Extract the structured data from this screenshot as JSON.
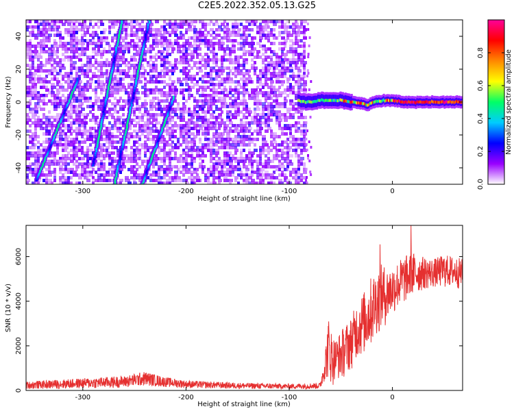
{
  "title": "C2E5.2022.352.05.13.G25",
  "chart_data": [
    {
      "type": "heatmap",
      "xlabel": "Height of straight line (km)",
      "ylabel": "Frequency (Hz)",
      "xlim": [
        -355,
        68
      ],
      "ylim": [
        -50,
        50
      ],
      "xticks": [
        -300,
        -200,
        -100,
        0
      ],
      "yticks": [
        -40,
        -20,
        0,
        20,
        40
      ],
      "grid": false,
      "colorbar": {
        "label": "Normalized spectral amplitude",
        "range": [
          0,
          1
        ],
        "ticks": [
          "0.0",
          "0.2",
          "0.4",
          "0.6",
          "0.8"
        ],
        "colormap": "rainbow",
        "colors": [
          "#ffffff",
          "#9900ff",
          "#0000ff",
          "#00ccff",
          "#00ff66",
          "#ffff00",
          "#ff8800",
          "#ff0000",
          "#ff0099"
        ]
      },
      "noise_region_x": [
        -355,
        -85
      ],
      "carrier_line": {
        "x": [
          -92,
          -85,
          -80,
          -70,
          -60,
          -50,
          -40,
          -30,
          -25,
          -20,
          -10,
          0,
          10,
          20,
          30,
          40,
          50,
          60,
          68
        ],
        "frequency": [
          1,
          0,
          0,
          1,
          1,
          1,
          0,
          -1,
          -2,
          0,
          1,
          1,
          0,
          0,
          0,
          0,
          0,
          0,
          0
        ]
      },
      "streaks": [
        {
          "x": [
            -345,
            -305
          ],
          "frequency": [
            -47,
            14
          ]
        },
        {
          "x": [
            -290,
            -262
          ],
          "frequency": [
            -38,
            50
          ]
        },
        {
          "x": [
            -270,
            -235
          ],
          "frequency": [
            -52,
            52
          ]
        },
        {
          "x": [
            -244,
            -212
          ],
          "frequency": [
            -52,
            3
          ]
        }
      ]
    },
    {
      "type": "line",
      "xlabel": "Height of straight line (km)",
      "ylabel": "SNR (10 * v/v)",
      "xlim": [
        -355,
        68
      ],
      "ylim": [
        0,
        7400
      ],
      "xticks": [
        -300,
        -200,
        -100,
        0
      ],
      "yticks": [
        0,
        2000,
        4000,
        6000
      ],
      "grid": false,
      "line_color": "#e53030",
      "envelope": {
        "x": [
          -355,
          -300,
          -260,
          -240,
          -220,
          -200,
          -150,
          -100,
          -70,
          -66,
          -62,
          -58,
          -55,
          -50,
          -45,
          -40,
          -35,
          -30,
          -25,
          -20,
          -15,
          -10,
          -5,
          0,
          10,
          20,
          30,
          40,
          50,
          60,
          68
        ],
        "low": [
          60,
          80,
          120,
          200,
          150,
          100,
          70,
          60,
          60,
          400,
          500,
          150,
          600,
          400,
          700,
          900,
          1400,
          1500,
          1700,
          2000,
          2500,
          2700,
          3000,
          3400,
          3800,
          4200,
          4500,
          4600,
          4600,
          4600,
          4500
        ],
        "high": [
          400,
          550,
          650,
          850,
          600,
          450,
          350,
          300,
          350,
          1500,
          3300,
          2500,
          2300,
          2700,
          3000,
          3300,
          3900,
          4300,
          4600,
          5200,
          5400,
          5700,
          5500,
          5600,
          6000,
          6200,
          6000,
          5900,
          6100,
          6000,
          5900
        ]
      },
      "spikes": [
        {
          "x": -12,
          "y": 6550
        },
        {
          "x": 18,
          "y": 7400
        }
      ]
    }
  ]
}
